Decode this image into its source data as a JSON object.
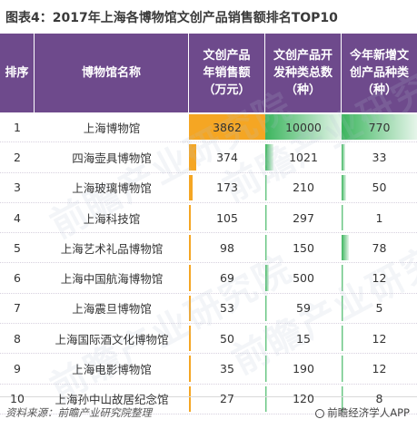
{
  "title": "图表4：2017年上海各博物馆文创产品销售额排名TOP10",
  "headers": {
    "rank": "排序",
    "name": "博物馆名称",
    "sales": [
      "文创产品",
      "年销售额",
      "（万元）"
    ],
    "developed": [
      "文创产品开",
      "发种类总数",
      "（种）"
    ],
    "new_added": [
      "今年新增文",
      "创产品种类",
      "（种）"
    ]
  },
  "colors": {
    "header_bg": "#6e4a8c",
    "sales_bar": "#f5a623",
    "green_bar": "#3cb55e"
  },
  "chart_data": {
    "type": "table",
    "columns": [
      "排序",
      "博物馆名称",
      "文创产品年销售额（万元）",
      "文创产品开发种类总数（种）",
      "今年新增文创产品种类（种）"
    ],
    "rows": [
      {
        "rank": "1",
        "name": "上海博物馆",
        "sales": 3862,
        "developed": 10000,
        "new_added": 770
      },
      {
        "rank": "2",
        "name": "四海壶具博物馆",
        "sales": 374,
        "developed": 1021,
        "new_added": 33
      },
      {
        "rank": "3",
        "name": "上海玻璃博物馆",
        "sales": 173,
        "developed": 210,
        "new_added": 50
      },
      {
        "rank": "4",
        "name": "上海科技馆",
        "sales": 105,
        "developed": 297,
        "new_added": 1
      },
      {
        "rank": "5",
        "name": "上海艺术礼品博物馆",
        "sales": 98,
        "developed": 150,
        "new_added": 78
      },
      {
        "rank": "6",
        "name": "上海中国航海博物馆",
        "sales": 69,
        "developed": 500,
        "new_added": 12
      },
      {
        "rank": "7",
        "name": "上海震旦博物馆",
        "sales": 53,
        "developed": 59,
        "new_added": 5
      },
      {
        "rank": "8",
        "name": "上海国际酒文化博物馆",
        "sales": 50,
        "developed": 15,
        "new_added": 12
      },
      {
        "rank": "9",
        "name": "上海电影博物馆",
        "sales": 35,
        "developed": 190,
        "new_added": 12
      },
      {
        "rank": "10",
        "name": "上海孙中山故居纪念馆",
        "sales": 27,
        "developed": 120,
        "new_added": 8
      }
    ]
  },
  "footer": {
    "source": "资料来源：前瞻产业研究院整理",
    "brand": "前瞻经济学人APP"
  },
  "watermark": "前瞻产业研究院"
}
